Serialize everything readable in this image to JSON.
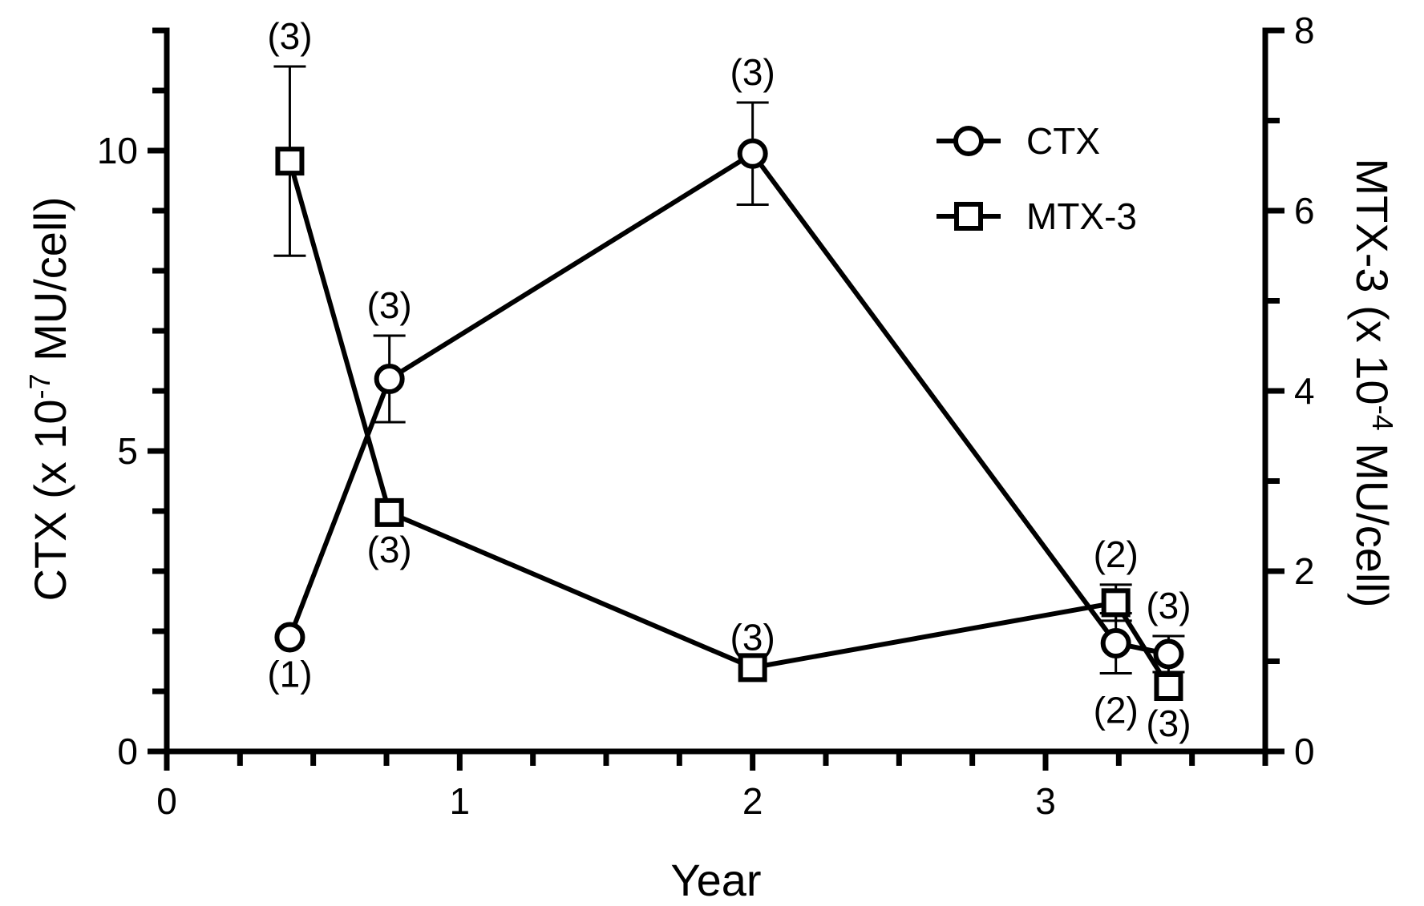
{
  "chart_data": {
    "type": "line",
    "xlabel": "Year",
    "ylabel_left": {
      "base": "CTX (x 10",
      "exp": "-7",
      "tail": " MU/cell)"
    },
    "ylabel_right": {
      "base": "MTX-3 (x 10",
      "exp": "-4",
      "tail": " MU/cell)"
    },
    "xlim": [
      0,
      3.75
    ],
    "xticks": [
      "0",
      "1",
      "2",
      "3"
    ],
    "ylim_left": [
      0,
      12
    ],
    "yticks_left": [
      "0",
      "5",
      "10"
    ],
    "ylim_right": [
      0,
      8
    ],
    "yticks_right": [
      "0",
      "2",
      "4",
      "6",
      "8"
    ],
    "legend": {
      "placement": "top-right",
      "entries": [
        "CTX",
        "MTX-3"
      ]
    },
    "series": [
      {
        "name": "CTX",
        "axis": "left",
        "marker": "circle",
        "x": [
          0.42,
          0.76,
          2.0,
          3.24,
          3.42
        ],
        "y": [
          1.9,
          6.2,
          9.95,
          1.8,
          1.62
        ],
        "err": [
          null,
          0.72,
          0.85,
          0.5,
          0.3
        ],
        "n": [
          "(1)",
          "(3)",
          "(3)",
          "(2)",
          "(3)"
        ],
        "n_pos": [
          "below",
          "above",
          "above",
          "below",
          "above"
        ]
      },
      {
        "name": "MTX-3",
        "axis": "right",
        "marker": "square",
        "x": [
          0.42,
          0.76,
          2.0,
          3.24,
          3.42
        ],
        "y": [
          6.55,
          2.65,
          0.93,
          1.65,
          0.72
        ],
        "err": [
          1.05,
          null,
          null,
          0.2,
          null
        ],
        "n": [
          "(3)",
          "(3)",
          "(3)",
          "(2)",
          "(3)"
        ],
        "n_pos": [
          "above",
          "below",
          "above",
          "above",
          "below"
        ]
      }
    ]
  }
}
